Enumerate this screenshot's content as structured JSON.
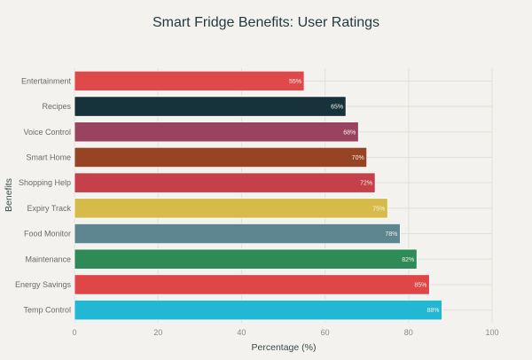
{
  "chart_data": {
    "type": "bar",
    "orientation": "horizontal",
    "title": "Smart Fridge Benefits: User Ratings",
    "xlabel": "Percentage (%)",
    "ylabel": "Benefits",
    "xlim": [
      0,
      100
    ],
    "xticks": [
      0,
      20,
      40,
      60,
      80,
      100
    ],
    "grid": true,
    "categories": [
      "Entertainment",
      "Recipes",
      "Voice Control",
      "Smart Home",
      "Shopping Help",
      "Expiry Track",
      "Food Monitor",
      "Maintenance",
      "Energy Savings",
      "Temp Control"
    ],
    "values": [
      55,
      65,
      68,
      70,
      72,
      75,
      78,
      82,
      85,
      88
    ],
    "value_labels": [
      "55%",
      "65%",
      "68%",
      "70%",
      "72%",
      "75%",
      "78%",
      "82%",
      "85%",
      "88%"
    ],
    "colors": [
      "#de4a4a",
      "#18323b",
      "#9a4360",
      "#974425",
      "#c5404a",
      "#d7bb4a",
      "#5d8690",
      "#2e8b57",
      "#df4648",
      "#22b7d2"
    ]
  }
}
